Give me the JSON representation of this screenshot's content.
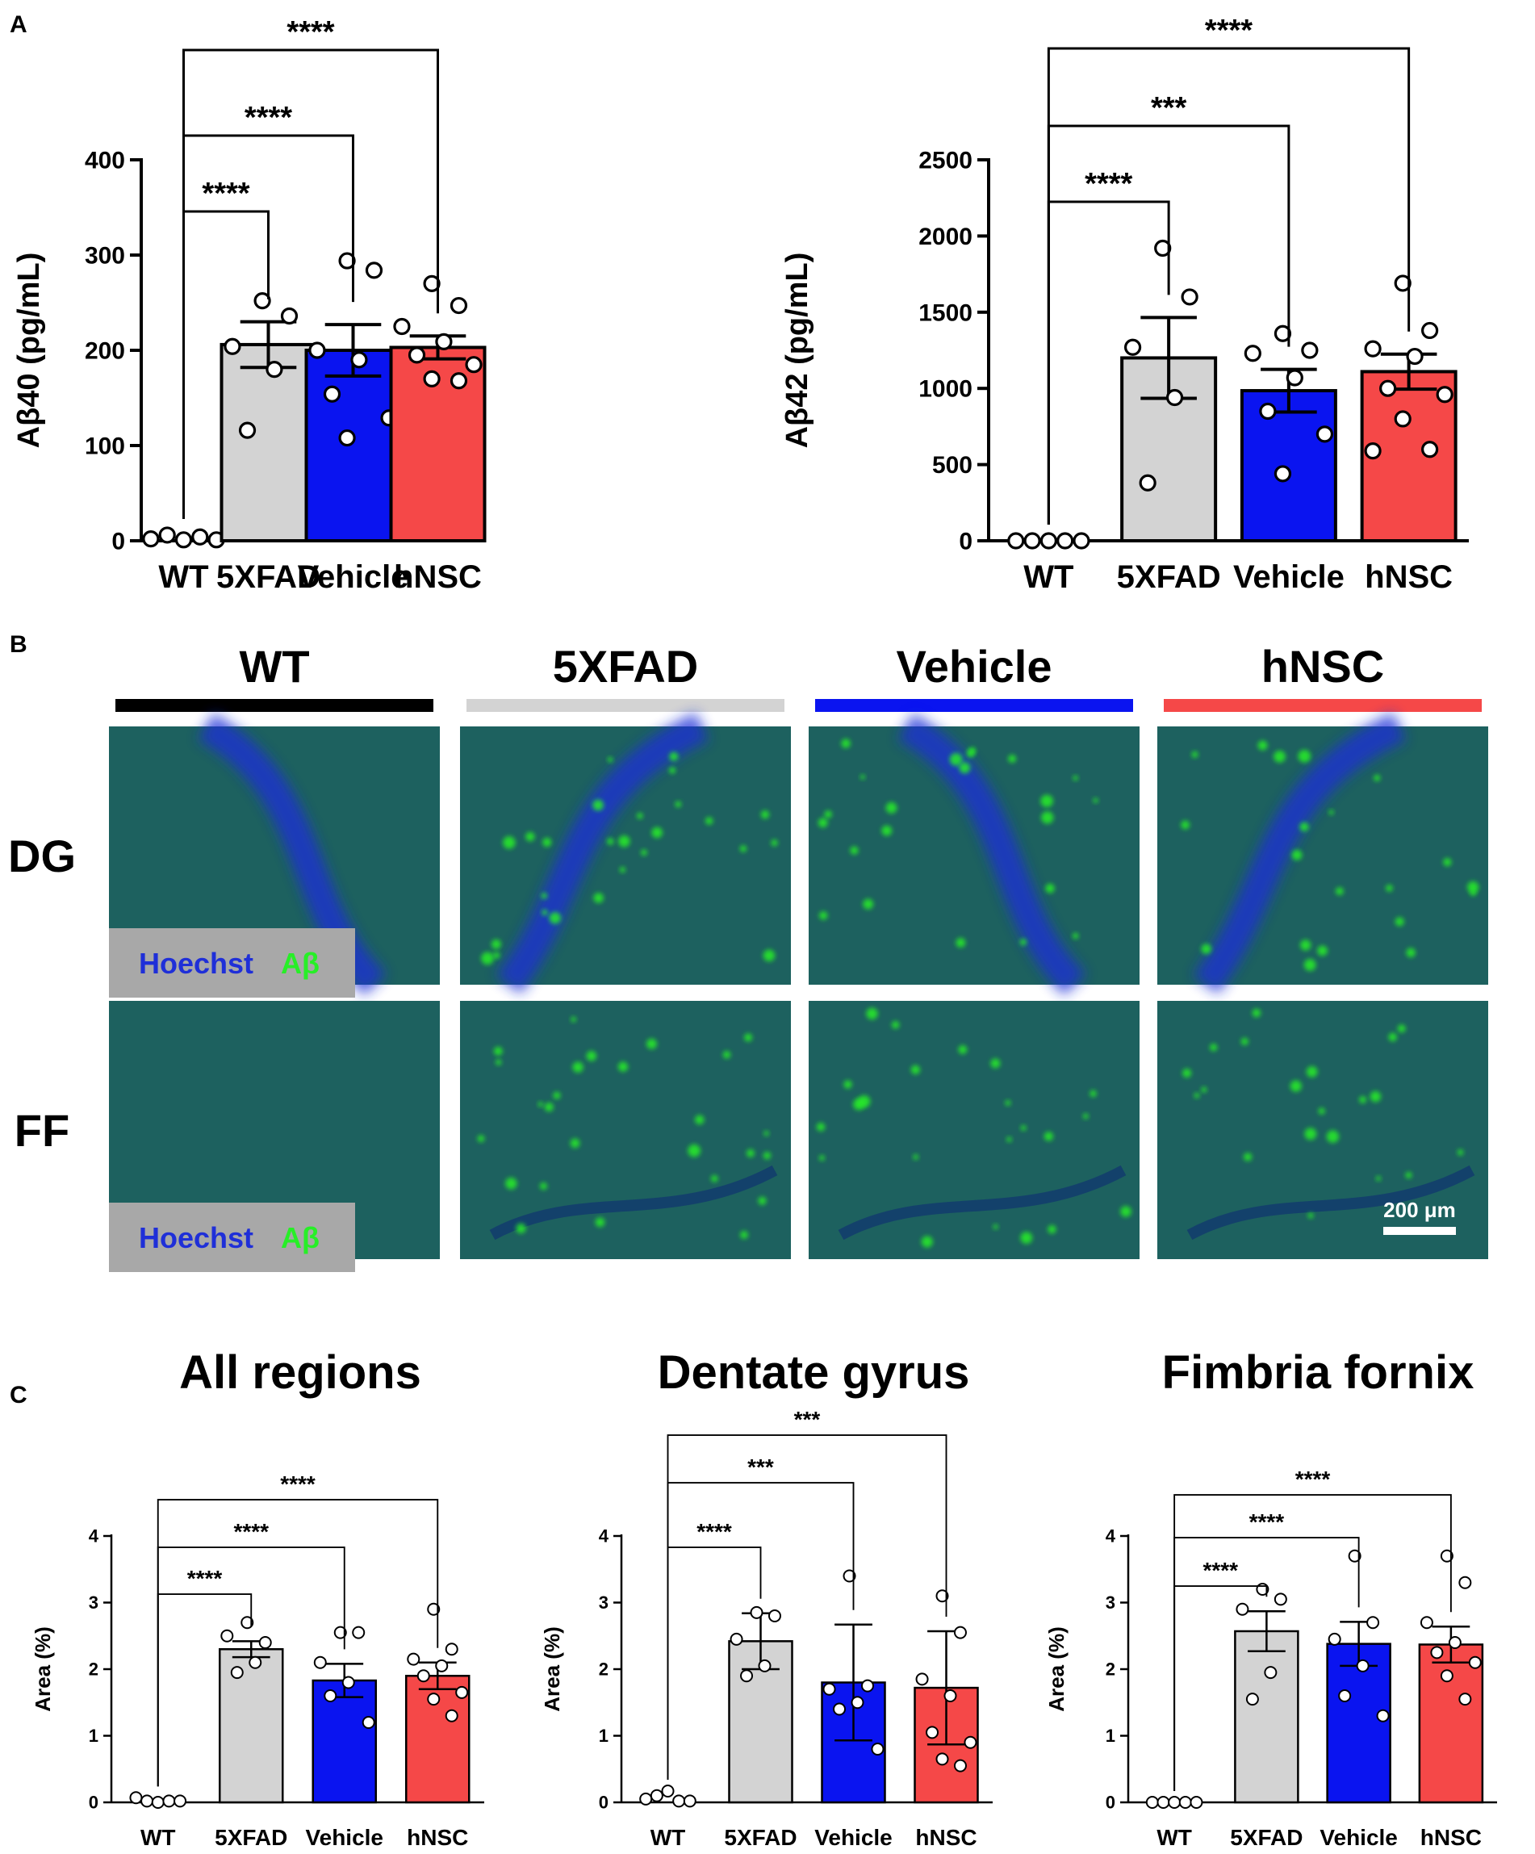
{
  "panels": {
    "A": "A",
    "B": "B",
    "C": "C"
  },
  "colors": {
    "WT": "#ffffff",
    "5XFAD": "#d3d3d3",
    "Vehicle": "#0a14f0",
    "hNSC": "#f54848",
    "hoechst": "#1f2fd8",
    "abeta": "#27ef27"
  },
  "chart_data": [
    {
      "type": "bar",
      "panel": "A",
      "categories": [
        "WT",
        "5XFAD",
        "Vehicle",
        "hNSC"
      ],
      "ylabel": "Aβ40 (pg/mL)",
      "ylim": [
        0,
        400
      ],
      "yticks": [
        "0",
        "100",
        "200",
        "300",
        "400"
      ],
      "values": [
        2,
        206,
        200,
        203
      ],
      "errors": [
        1,
        24,
        27,
        12
      ],
      "points": [
        [
          2,
          6,
          1,
          4,
          1
        ],
        [
          252,
          236,
          204,
          180,
          116
        ],
        [
          294,
          284,
          200,
          190,
          154,
          129,
          108
        ],
        [
          270,
          247,
          225,
          209,
          195,
          185,
          170,
          168
        ]
      ],
      "comparisons": [
        {
          "from": 0,
          "to": 1,
          "label": "****"
        },
        {
          "from": 0,
          "to": 2,
          "label": "****"
        },
        {
          "from": 0,
          "to": 3,
          "label": "****"
        }
      ]
    },
    {
      "type": "bar",
      "panel": "A",
      "categories": [
        "WT",
        "5XFAD",
        "Vehicle",
        "hNSC"
      ],
      "ylabel": "Aβ42 (pg/mL)",
      "ylim": [
        0,
        2500
      ],
      "yticks": [
        "0",
        "500",
        "1000",
        "1500",
        "2000",
        "2500"
      ],
      "values": [
        0,
        1200,
        985,
        1110
      ],
      "errors": [
        0,
        265,
        140,
        115
      ],
      "points": [
        [
          0,
          0,
          0,
          0,
          0
        ],
        [
          1920,
          1600,
          1270,
          940,
          380
        ],
        [
          1360,
          1250,
          1230,
          1070,
          850,
          700,
          440
        ],
        [
          1690,
          1380,
          1260,
          1210,
          1000,
          960,
          800,
          600,
          590
        ]
      ],
      "comparisons": [
        {
          "from": 0,
          "to": 1,
          "label": "****"
        },
        {
          "from": 0,
          "to": 2,
          "label": "***"
        },
        {
          "from": 0,
          "to": 3,
          "label": "****"
        }
      ]
    },
    {
      "type": "bar",
      "panel": "C",
      "title": "All regions",
      "categories": [
        "WT",
        "5XFAD",
        "Vehicle",
        "hNSC"
      ],
      "ylabel": "Area (%)",
      "ylim": [
        0,
        4
      ],
      "yticks": [
        "0",
        "1",
        "2",
        "3",
        "4"
      ],
      "values": [
        0.02,
        2.3,
        1.83,
        1.9
      ],
      "errors": [
        0.02,
        0.12,
        0.25,
        0.2
      ],
      "points": [
        [
          0.07,
          0.02,
          0.0,
          0.02,
          0.02
        ],
        [
          2.7,
          2.4,
          2.5,
          2.1,
          1.95
        ],
        [
          2.55,
          2.55,
          2.1,
          1.8,
          1.6,
          1.2
        ],
        [
          2.9,
          2.3,
          2.15,
          2.05,
          1.9,
          1.65,
          1.55,
          1.3
        ]
      ],
      "comparisons": [
        {
          "from": 0,
          "to": 1,
          "label": "****"
        },
        {
          "from": 0,
          "to": 2,
          "label": "****"
        },
        {
          "from": 0,
          "to": 3,
          "label": "****"
        }
      ]
    },
    {
      "type": "bar",
      "panel": "C",
      "title": "Dentate gyrus",
      "categories": [
        "WT",
        "5XFAD",
        "Vehicle",
        "hNSC"
      ],
      "ylabel": "Area (%)",
      "ylim": [
        0,
        4
      ],
      "yticks": [
        "0",
        "1",
        "2",
        "3",
        "4"
      ],
      "values": [
        0.05,
        2.42,
        1.8,
        1.72
      ],
      "errors": [
        0.1,
        0.42,
        0.87,
        0.85
      ],
      "points": [
        [
          0.05,
          0.1,
          0.17,
          0.02,
          0.02
        ],
        [
          2.85,
          2.8,
          2.45,
          2.05,
          1.9
        ],
        [
          3.4,
          1.75,
          1.7,
          1.5,
          1.4,
          0.8
        ],
        [
          3.1,
          2.55,
          1.85,
          1.6,
          1.05,
          0.9,
          0.65,
          0.55
        ]
      ],
      "comparisons": [
        {
          "from": 0,
          "to": 1,
          "label": "****"
        },
        {
          "from": 0,
          "to": 2,
          "label": "***"
        },
        {
          "from": 0,
          "to": 3,
          "label": "***"
        }
      ]
    },
    {
      "type": "bar",
      "panel": "C",
      "title": "Fimbria fornix",
      "categories": [
        "WT",
        "5XFAD",
        "Vehicle",
        "hNSC"
      ],
      "ylabel": "Area (%)",
      "ylim": [
        0,
        4
      ],
      "yticks": [
        "0",
        "1",
        "2",
        "3",
        "4"
      ],
      "values": [
        0.0,
        2.57,
        2.38,
        2.37
      ],
      "errors": [
        0.0,
        0.3,
        0.33,
        0.27
      ],
      "points": [
        [
          0.0,
          0.0,
          0.0,
          0.0,
          0.0
        ],
        [
          3.2,
          3.05,
          2.9,
          1.95,
          1.55
        ],
        [
          3.7,
          2.7,
          2.45,
          2.05,
          1.6,
          1.3
        ],
        [
          3.7,
          3.3,
          2.7,
          2.4,
          2.25,
          2.1,
          1.9,
          1.55
        ]
      ],
      "comparisons": [
        {
          "from": 0,
          "to": 1,
          "label": "****"
        },
        {
          "from": 0,
          "to": 2,
          "label": "****"
        },
        {
          "from": 0,
          "to": 3,
          "label": "****"
        }
      ]
    }
  ],
  "images": {
    "columns": [
      "WT",
      "5XFAD",
      "Vehicle",
      "hNSC"
    ],
    "rows": [
      "DG",
      "FF"
    ],
    "legend_hoechst": "Hoechst",
    "legend_abeta": "Aβ",
    "scale_bar": "200 μm"
  }
}
